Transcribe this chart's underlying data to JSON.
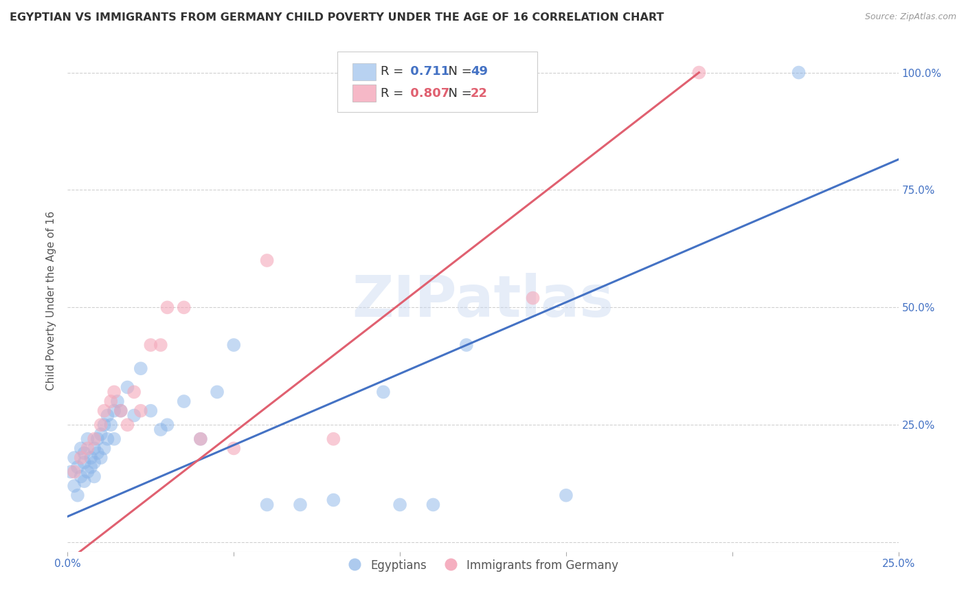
{
  "title": "EGYPTIAN VS IMMIGRANTS FROM GERMANY CHILD POVERTY UNDER THE AGE OF 16 CORRELATION CHART",
  "source": "Source: ZipAtlas.com",
  "ylabel": "Child Poverty Under the Age of 16",
  "xlim": [
    0.0,
    0.25
  ],
  "ylim": [
    -0.02,
    1.05
  ],
  "xticks": [
    0.0,
    0.05,
    0.1,
    0.15,
    0.2,
    0.25
  ],
  "xtick_labels": [
    "0.0%",
    "",
    "",
    "",
    "",
    "25.0%"
  ],
  "yticks": [
    0.0,
    0.25,
    0.5,
    0.75,
    1.0
  ],
  "ytick_labels_right": [
    "",
    "25.0%",
    "50.0%",
    "75.0%",
    "100.0%"
  ],
  "blue_color": "#8ab4e8",
  "pink_color": "#f4a7b9",
  "blue_line_color": "#4472c4",
  "pink_line_color": "#e06070",
  "legend_blue_R": "0.711",
  "legend_blue_N": "49",
  "legend_pink_R": "0.807",
  "legend_pink_N": "22",
  "legend_label_blue": "Egyptians",
  "legend_label_pink": "Immigrants from Germany",
  "watermark": "ZIPatlas",
  "blue_R_color": "#4472c4",
  "pink_R_color": "#e06070",
  "blue_scatter_x": [
    0.001,
    0.002,
    0.002,
    0.003,
    0.003,
    0.004,
    0.004,
    0.005,
    0.005,
    0.005,
    0.006,
    0.006,
    0.007,
    0.007,
    0.008,
    0.008,
    0.008,
    0.009,
    0.009,
    0.01,
    0.01,
    0.011,
    0.011,
    0.012,
    0.012,
    0.013,
    0.014,
    0.014,
    0.015,
    0.016,
    0.018,
    0.02,
    0.022,
    0.025,
    0.028,
    0.03,
    0.035,
    0.04,
    0.045,
    0.05,
    0.06,
    0.07,
    0.08,
    0.095,
    0.1,
    0.11,
    0.12,
    0.15,
    0.22
  ],
  "blue_scatter_y": [
    0.15,
    0.18,
    0.12,
    0.16,
    0.1,
    0.2,
    0.14,
    0.17,
    0.13,
    0.19,
    0.15,
    0.22,
    0.18,
    0.16,
    0.2,
    0.17,
    0.14,
    0.22,
    0.19,
    0.18,
    0.23,
    0.2,
    0.25,
    0.22,
    0.27,
    0.25,
    0.28,
    0.22,
    0.3,
    0.28,
    0.33,
    0.27,
    0.37,
    0.28,
    0.24,
    0.25,
    0.3,
    0.22,
    0.32,
    0.42,
    0.08,
    0.08,
    0.09,
    0.32,
    0.08,
    0.08,
    0.42,
    0.1,
    1.0
  ],
  "pink_scatter_x": [
    0.002,
    0.004,
    0.006,
    0.008,
    0.01,
    0.011,
    0.013,
    0.014,
    0.016,
    0.018,
    0.02,
    0.022,
    0.025,
    0.028,
    0.03,
    0.035,
    0.04,
    0.05,
    0.06,
    0.08,
    0.14,
    0.19
  ],
  "pink_scatter_y": [
    0.15,
    0.18,
    0.2,
    0.22,
    0.25,
    0.28,
    0.3,
    0.32,
    0.28,
    0.25,
    0.32,
    0.28,
    0.42,
    0.42,
    0.5,
    0.5,
    0.22,
    0.2,
    0.6,
    0.22,
    0.52,
    1.0
  ]
}
